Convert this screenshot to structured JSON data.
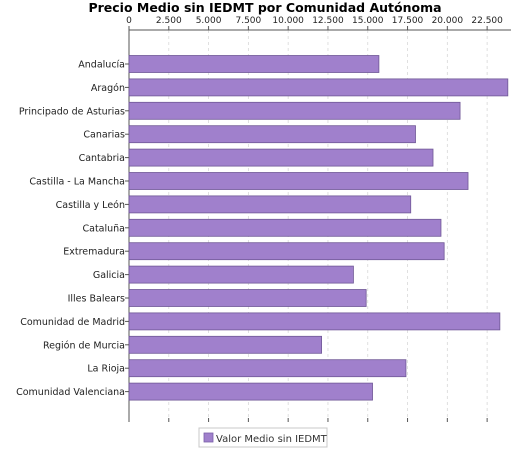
{
  "chart_data": {
    "type": "bar",
    "orientation": "horizontal",
    "title": "Precio Medio sin IEDMT por Comunidad Autónoma",
    "categories": [
      "Andalucía",
      "Aragón",
      "Principado de Asturias",
      "Canarias",
      "Cantabria",
      "Castilla - La Mancha",
      "Castilla y León",
      "Cataluña",
      "Extremadura",
      "Galicia",
      "Illes Balears",
      "Comunidad de Madrid",
      "Región de Murcia",
      "La Rioja",
      "Comunidad Valenciana"
    ],
    "series": [
      {
        "name": "Valor Medio sin IEDMT",
        "color": "#a080cc",
        "values": [
          15700,
          23800,
          20800,
          18000,
          19100,
          21300,
          17700,
          19600,
          19800,
          14100,
          14900,
          23300,
          12100,
          17400,
          15300
        ]
      }
    ],
    "xaxis": {
      "ticks": [
        0,
        2500,
        5000,
        7500,
        10000,
        12500,
        15000,
        17500,
        20000,
        22500
      ],
      "tick_labels": [
        "0",
        "2.500",
        "5.000",
        "7.500",
        "10.000",
        "12.500",
        "15.000",
        "17.500",
        "20.000",
        "22.500"
      ],
      "range": [
        0,
        24000
      ],
      "position": "top"
    },
    "grid": true,
    "legend_position": "bottom"
  }
}
